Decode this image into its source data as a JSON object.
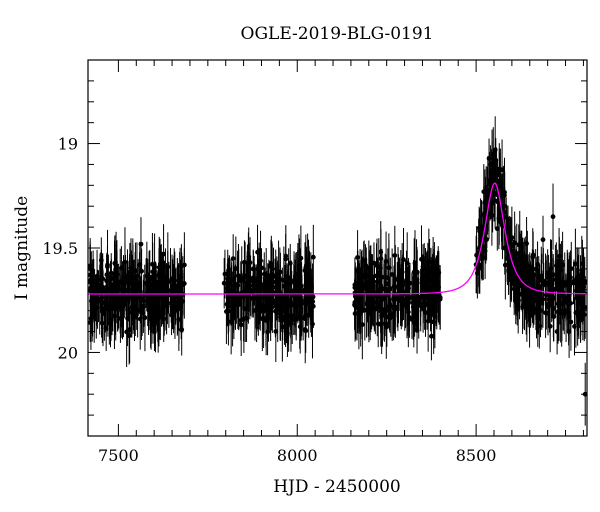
{
  "chart_data": {
    "type": "scatter",
    "title": "OGLE-2019-BLG-0191",
    "xlabel": "HJD - 2450000",
    "ylabel": "I magnitude",
    "xlim": [
      7415,
      8810
    ],
    "ylim": [
      20.4,
      18.6
    ],
    "y_inverted": true,
    "x_ticks": [
      7500,
      8000,
      8500
    ],
    "y_ticks": [
      19,
      19.5,
      20
    ],
    "x_tick_labels": [
      "7500",
      "8000",
      "8500"
    ],
    "y_tick_labels": [
      "19",
      "19.5",
      "20"
    ],
    "grid": false,
    "legend": false,
    "observing_seasons": [
      [
        7420,
        7685
      ],
      [
        7795,
        8045
      ],
      [
        8160,
        8400
      ],
      [
        8500,
        8805
      ]
    ],
    "baseline_magnitude": 19.72,
    "typical_error_mag": 0.13,
    "series": [
      {
        "kind": "points_with_errorbars",
        "color": "#000000",
        "points_sample": [
          [
            7430,
            19.71
          ],
          [
            7455,
            19.86
          ],
          [
            7480,
            19.62
          ],
          [
            7505,
            19.75
          ],
          [
            7530,
            19.92
          ],
          [
            7560,
            19.68
          ],
          [
            7590,
            19.81
          ],
          [
            7620,
            19.64
          ],
          [
            7650,
            19.78
          ],
          [
            7675,
            19.7
          ],
          [
            7810,
            19.67
          ],
          [
            7850,
            19.84
          ],
          [
            7890,
            19.73
          ],
          [
            7930,
            19.6
          ],
          [
            7970,
            19.79
          ],
          [
            8010,
            19.7
          ],
          [
            8040,
            19.76
          ],
          [
            8170,
            19.74
          ],
          [
            8210,
            19.66
          ],
          [
            8250,
            19.83
          ],
          [
            8290,
            19.69
          ],
          [
            8330,
            19.77
          ],
          [
            8370,
            19.62
          ],
          [
            8395,
            19.72
          ],
          [
            8515,
            19.52
          ],
          [
            8530,
            19.35
          ],
          [
            8540,
            19.1
          ],
          [
            8548,
            19.05
          ],
          [
            8555,
            19.08
          ],
          [
            8565,
            19.15
          ],
          [
            8580,
            19.3
          ],
          [
            8600,
            19.45
          ],
          [
            8620,
            19.55
          ],
          [
            8650,
            19.65
          ],
          [
            8680,
            19.8
          ],
          [
            8700,
            19.62
          ],
          [
            8715,
            19.35
          ],
          [
            8730,
            19.7
          ],
          [
            8760,
            19.9
          ],
          [
            8790,
            19.75
          ],
          [
            8805,
            20.2
          ]
        ]
      },
      {
        "kind": "model_curve",
        "color": "#ff00ff",
        "baseline": 19.72,
        "peak_x": 8552,
        "peak_magnitude": 19.19
      }
    ]
  }
}
